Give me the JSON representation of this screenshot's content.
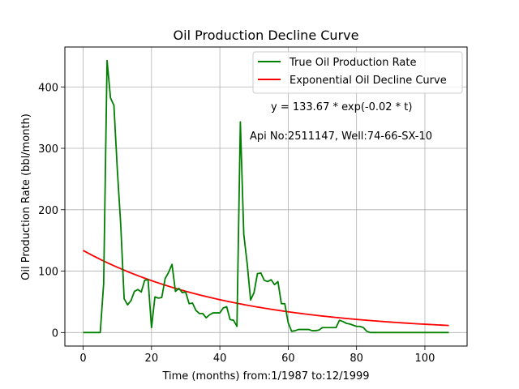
{
  "chart_data": {
    "type": "line",
    "title": "Oil Production Decline Curve",
    "xlabel": "Time (months) from:1/1987 to:12/1999",
    "ylabel": "Oil Production Rate (bbl/month)",
    "xlim": [
      -5.35,
      112.35
    ],
    "ylim": [
      -22,
      465
    ],
    "grid": true,
    "legend_position": "top-right",
    "x_ticks": [
      0,
      20,
      40,
      60,
      80,
      100
    ],
    "y_ticks": [
      0,
      100,
      200,
      300,
      400
    ],
    "annotations": [
      "y = 133.67 * exp(-0.02 * t)",
      "Api No:2511147, Well:74-66-SX-10"
    ],
    "series": [
      {
        "name": "True Oil Production Rate",
        "color": "#008000",
        "kind": "observed",
        "x": [
          0,
          1,
          2,
          3,
          4,
          5,
          6,
          7,
          8,
          9,
          10,
          11,
          12,
          13,
          14,
          15,
          16,
          17,
          18,
          19,
          20,
          21,
          22,
          23,
          24,
          25,
          26,
          27,
          28,
          29,
          30,
          31,
          32,
          33,
          34,
          35,
          36,
          37,
          38,
          39,
          40,
          41,
          42,
          43,
          44,
          45,
          46,
          47,
          48,
          49,
          50,
          51,
          52,
          53,
          54,
          55,
          56,
          57,
          58,
          59,
          60,
          61,
          62,
          63,
          64,
          65,
          66,
          67,
          68,
          69,
          70,
          71,
          72,
          73,
          74,
          75,
          76,
          77,
          78,
          79,
          80,
          81,
          82,
          83,
          84,
          85,
          86,
          87,
          88,
          89,
          90,
          91,
          92,
          93,
          94,
          95,
          96,
          97,
          98,
          99,
          100,
          101,
          102,
          103,
          104,
          105,
          106,
          107
        ],
        "values": [
          0,
          0,
          0,
          0,
          0,
          0,
          80,
          443,
          382,
          370,
          265,
          175,
          55,
          45,
          52,
          67,
          70,
          66,
          85,
          86,
          8,
          58,
          56,
          57,
          88,
          98,
          111,
          67,
          72,
          65,
          66,
          47,
          48,
          36,
          31,
          31,
          24,
          29,
          32,
          32,
          32,
          40,
          42,
          21,
          20,
          10,
          343,
          160,
          112,
          53,
          65,
          96,
          97,
          85,
          83,
          86,
          78,
          83,
          47,
          47,
          16,
          2,
          3,
          5,
          5,
          5,
          5,
          3,
          3,
          4,
          8,
          8,
          8,
          8,
          8,
          20,
          18,
          15,
          14,
          12,
          10,
          10,
          8,
          2,
          0,
          0,
          0,
          0,
          0,
          0,
          0,
          0,
          0,
          0,
          0,
          0,
          0,
          0,
          0,
          0,
          0,
          0,
          0,
          0,
          0,
          0,
          0,
          0
        ]
      },
      {
        "name": "Exponential Oil Decline Curve",
        "color": "#ff0000",
        "kind": "fit",
        "a": 133.67,
        "b": -0.0229,
        "x_range": [
          0,
          107
        ]
      }
    ]
  }
}
